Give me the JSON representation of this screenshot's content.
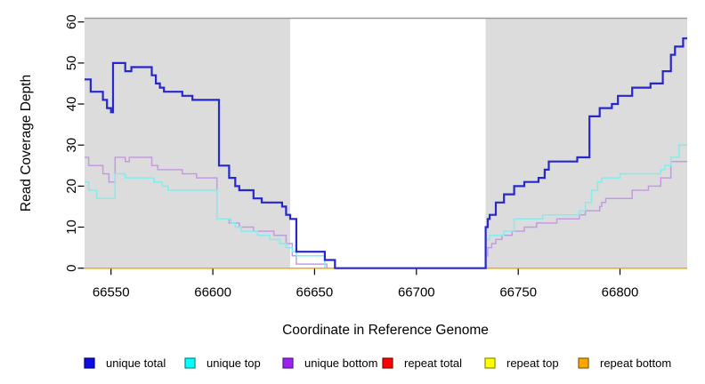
{
  "figure": {
    "background": "#ffffff"
  },
  "axes": {
    "x": {
      "label": "Coordinate in Reference Genome",
      "ticks": [
        66550,
        66600,
        66650,
        66700,
        66750,
        66800
      ],
      "range": [
        66537,
        66833
      ]
    },
    "y": {
      "label": "Read Coverage Depth",
      "ticks": [
        0,
        10,
        20,
        30,
        40,
        50,
        60
      ],
      "range": [
        0,
        60
      ]
    }
  },
  "shaded_regions": [
    {
      "name": "left-shaded-region",
      "x_start": 66537,
      "x_end": 66638
    },
    {
      "name": "right-shaded-region",
      "x_start": 66734,
      "x_end": 66833
    }
  ],
  "colors": {
    "panel_shade": "#DCDCDC",
    "plot_top_border": "#999999",
    "tick": "#000000"
  },
  "chart_data": {
    "type": "line",
    "subtype": "step",
    "title": "",
    "xlabel": "Coordinate in Reference Genome",
    "ylabel": "Read Coverage Depth",
    "xlim": [
      66537,
      66833
    ],
    "ylim": [
      0,
      60
    ],
    "grid": false,
    "legend_position": "bottom",
    "series": [
      {
        "name": "unique-total",
        "label": "unique total",
        "line_color": "#2727CE",
        "legend_fill": "#0D0DE0",
        "legend_border": "#000080",
        "line_width": 2.2,
        "points": [
          [
            66537,
            46
          ],
          [
            66540,
            43
          ],
          [
            66546,
            41
          ],
          [
            66548,
            39
          ],
          [
            66550,
            38
          ],
          [
            66551,
            50
          ],
          [
            66557,
            48
          ],
          [
            66560,
            49
          ],
          [
            66570,
            47
          ],
          [
            66572,
            45
          ],
          [
            66574,
            44
          ],
          [
            66576,
            43
          ],
          [
            66585,
            42
          ],
          [
            66590,
            41
          ],
          [
            66603,
            25
          ],
          [
            66608,
            22
          ],
          [
            66611,
            20
          ],
          [
            66613,
            19
          ],
          [
            66620,
            17
          ],
          [
            66624,
            16
          ],
          [
            66634,
            15
          ],
          [
            66636,
            13
          ],
          [
            66638,
            12
          ],
          [
            66641,
            4
          ],
          [
            66655,
            2
          ],
          [
            66660,
            0
          ],
          [
            66734,
            10
          ],
          [
            66735,
            12
          ],
          [
            66736,
            13
          ],
          [
            66739,
            16
          ],
          [
            66743,
            18
          ],
          [
            66748,
            20
          ],
          [
            66753,
            21
          ],
          [
            66760,
            22
          ],
          [
            66763,
            24
          ],
          [
            66765,
            26
          ],
          [
            66779,
            27
          ],
          [
            66785,
            37
          ],
          [
            66790,
            39
          ],
          [
            66796,
            40
          ],
          [
            66799,
            42
          ],
          [
            66806,
            44
          ],
          [
            66815,
            45
          ],
          [
            66821,
            48
          ],
          [
            66825,
            52
          ],
          [
            66827,
            54
          ],
          [
            66831,
            56
          ],
          [
            66833,
            56
          ]
        ]
      },
      {
        "name": "unique-top",
        "label": "unique top",
        "line_color": "#82EDED",
        "legend_fill": "#00FFFF",
        "legend_border": "#008B8B",
        "line_width": 1.5,
        "points": [
          [
            66537,
            21
          ],
          [
            66539,
            19
          ],
          [
            66543,
            17
          ],
          [
            66552,
            23
          ],
          [
            66557,
            22
          ],
          [
            66571,
            21
          ],
          [
            66575,
            20
          ],
          [
            66578,
            19
          ],
          [
            66602,
            12
          ],
          [
            66609,
            11
          ],
          [
            66611,
            10
          ],
          [
            66614,
            9
          ],
          [
            66622,
            8
          ],
          [
            66628,
            7
          ],
          [
            66633,
            6
          ],
          [
            66636,
            5
          ],
          [
            66639,
            4
          ],
          [
            66641,
            3
          ],
          [
            66655,
            0
          ],
          [
            66734,
            7
          ],
          [
            66736,
            8
          ],
          [
            66743,
            9
          ],
          [
            66748,
            12
          ],
          [
            66762,
            13
          ],
          [
            66780,
            14
          ],
          [
            66783,
            16
          ],
          [
            66786,
            19
          ],
          [
            66789,
            21
          ],
          [
            66791,
            22
          ],
          [
            66800,
            23
          ],
          [
            66820,
            24
          ],
          [
            66822,
            25
          ],
          [
            66825,
            27
          ],
          [
            66829,
            30
          ],
          [
            66833,
            30
          ]
        ]
      },
      {
        "name": "unique-bottom",
        "label": "unique bottom",
        "line_color": "#C49BE3",
        "legend_fill": "#A020F0",
        "legend_border": "#551A8B",
        "line_width": 1.5,
        "points": [
          [
            66537,
            27
          ],
          [
            66539,
            25
          ],
          [
            66546,
            23
          ],
          [
            66549,
            21
          ],
          [
            66552,
            27
          ],
          [
            66557,
            26
          ],
          [
            66559,
            27
          ],
          [
            66570,
            25
          ],
          [
            66573,
            24
          ],
          [
            66585,
            23
          ],
          [
            66592,
            22
          ],
          [
            66602,
            12
          ],
          [
            66608,
            11
          ],
          [
            66613,
            10
          ],
          [
            66620,
            9
          ],
          [
            66630,
            8
          ],
          [
            66636,
            6
          ],
          [
            66639,
            3
          ],
          [
            66641,
            1
          ],
          [
            66656,
            0
          ],
          [
            66734,
            3
          ],
          [
            66735,
            5
          ],
          [
            66737,
            6
          ],
          [
            66739,
            7
          ],
          [
            66742,
            8
          ],
          [
            66747,
            9
          ],
          [
            66753,
            10
          ],
          [
            66759,
            11
          ],
          [
            66769,
            12
          ],
          [
            66780,
            13
          ],
          [
            66783,
            14
          ],
          [
            66790,
            15
          ],
          [
            66791,
            16
          ],
          [
            66793,
            17
          ],
          [
            66806,
            19
          ],
          [
            66814,
            20
          ],
          [
            66820,
            22
          ],
          [
            66825,
            26
          ],
          [
            66833,
            26
          ]
        ]
      },
      {
        "name": "repeat-total",
        "label": "repeat total",
        "line_color": "#FF0000",
        "legend_fill": "#FF0000",
        "legend_border": "#8B0000",
        "line_width": 1.5,
        "points": [
          [
            66537,
            0
          ],
          [
            66833,
            0
          ]
        ]
      },
      {
        "name": "repeat-top",
        "label": "repeat top",
        "line_color": "#FFFF00",
        "legend_fill": "#FFFF00",
        "legend_border": "#8B8B00",
        "line_width": 1.5,
        "points": [
          [
            66537,
            0
          ],
          [
            66833,
            0
          ]
        ]
      },
      {
        "name": "repeat-bottom",
        "label": "repeat bottom",
        "line_color": "#FFA500",
        "legend_fill": "#FFA500",
        "legend_border": "#8B5A00",
        "line_width": 1.5,
        "points": [
          [
            66537,
            0
          ],
          [
            66833,
            0
          ]
        ]
      }
    ]
  }
}
